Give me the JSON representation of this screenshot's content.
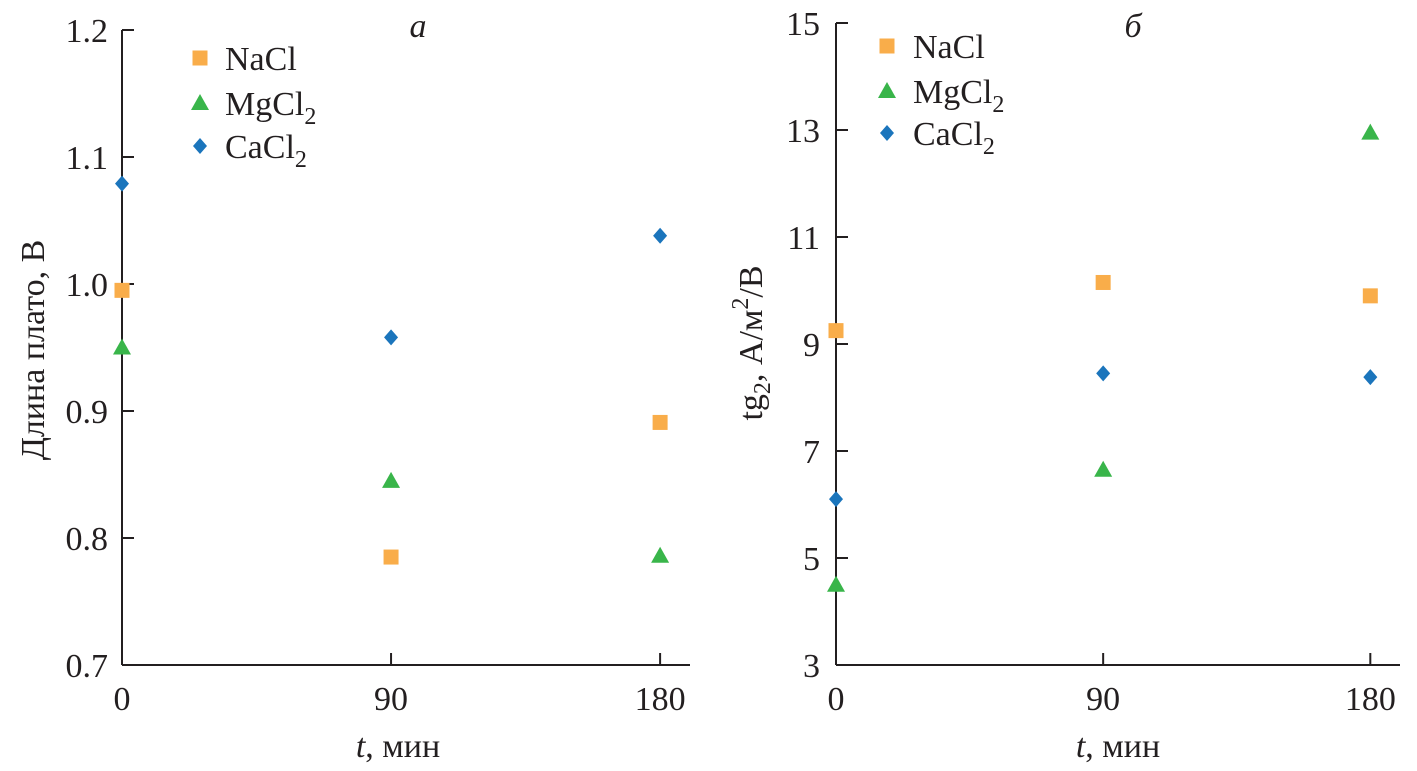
{
  "chart_data": [
    {
      "type": "scatter",
      "panel_label": "а",
      "xlabel_italic": "t",
      "xlabel_rest": ", мин",
      "ylabel": "Длина плато, В",
      "x_ticks": [
        0,
        90,
        180
      ],
      "x_tick_labels": [
        "0",
        "90",
        "180"
      ],
      "y_ticks": [
        0.7,
        0.8,
        0.9,
        1.0,
        1.1,
        1.2
      ],
      "y_tick_labels": [
        "0.7",
        "0.8",
        "0.9",
        "1.0",
        "1.1",
        "1.2"
      ],
      "xlim": [
        0,
        190
      ],
      "ylim": [
        0.7,
        1.2
      ],
      "series": [
        {
          "name": "NaCl",
          "base": "NaCl",
          "sub": "",
          "color": "#f9ad4a",
          "marker": "square",
          "x": [
            0,
            90,
            180
          ],
          "y": [
            0.995,
            0.785,
            0.891
          ]
        },
        {
          "name": "MgCl2",
          "base": "MgCl",
          "sub": "2",
          "color": "#39b54a",
          "marker": "triangle",
          "x": [
            0,
            90,
            180
          ],
          "y": [
            0.95,
            0.845,
            0.786
          ]
        },
        {
          "name": "CaCl2",
          "base": "CaCl",
          "sub": "2",
          "color": "#1b75bc",
          "marker": "diamond",
          "x": [
            0,
            90,
            180
          ],
          "y": [
            1.079,
            0.958,
            1.038
          ]
        }
      ]
    },
    {
      "type": "scatter",
      "panel_label": "б",
      "xlabel_italic": "t",
      "xlabel_rest": ", мин",
      "ylabel": "tg2, А/м2/В",
      "ylabel_parts": [
        "tg",
        "2",
        ", А/м",
        "2",
        "/В"
      ],
      "x_ticks": [
        0,
        90,
        180
      ],
      "x_tick_labels": [
        "0",
        "90",
        "180"
      ],
      "y_ticks": [
        3,
        5,
        7,
        9,
        11,
        13,
        15
      ],
      "y_tick_labels": [
        "3",
        "5",
        "7",
        "9",
        "11",
        "13",
        "15"
      ],
      "xlim": [
        0,
        190
      ],
      "ylim": [
        3,
        15
      ],
      "series": [
        {
          "name": "NaCl",
          "base": "NaCl",
          "sub": "",
          "color": "#f9ad4a",
          "marker": "square",
          "x": [
            0,
            90,
            180
          ],
          "y": [
            9.25,
            10.15,
            9.9
          ]
        },
        {
          "name": "MgCl2",
          "base": "MgCl",
          "sub": "2",
          "color": "#39b54a",
          "marker": "triangle",
          "x": [
            0,
            90,
            180
          ],
          "y": [
            4.5,
            6.65,
            12.95
          ]
        },
        {
          "name": "CaCl2",
          "base": "CaCl",
          "sub": "2",
          "color": "#1b75bc",
          "marker": "diamond",
          "x": [
            0,
            90,
            180
          ],
          "y": [
            6.1,
            8.45,
            8.38
          ]
        }
      ]
    }
  ]
}
